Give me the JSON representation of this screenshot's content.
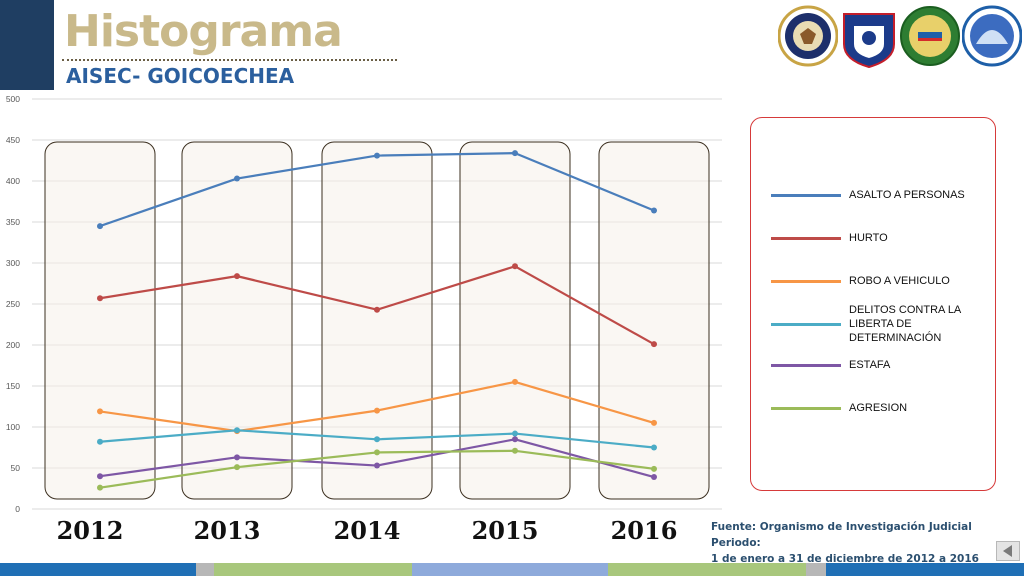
{
  "header": {
    "title": "Histograma",
    "subtitle": "AISEC- GOICOECHEA"
  },
  "logos": [
    {
      "name": "us-embassy-seal-icon",
      "text": "UNITED STATES OF AMERICA · EMBASSY"
    },
    {
      "name": "fuerza-publica-shield-icon",
      "text": "FUERZA PUBLICA"
    },
    {
      "name": "costa-rica-seal-icon",
      "text": ""
    },
    {
      "name": "aisec-logo-icon",
      "text": "AISEC"
    }
  ],
  "chart_data": {
    "type": "line",
    "categories": [
      "2012",
      "2013",
      "2014",
      "2015",
      "2016"
    ],
    "ylim": [
      0,
      500
    ],
    "yticks": [
      "0",
      "50",
      "100",
      "150",
      "200",
      "250",
      "300",
      "350",
      "400",
      "450",
      "500"
    ],
    "grid": true,
    "legend_position": "right",
    "series": [
      {
        "name": "ASALTO A PERSONAS",
        "color": "#4a7ebb",
        "values": [
          345,
          403,
          431,
          434,
          364
        ]
      },
      {
        "name": "HURTO",
        "color": "#be4b48",
        "values": [
          257,
          284,
          243,
          296,
          201
        ]
      },
      {
        "name": "ROBO A VEHICULO",
        "color": "#f79646",
        "values": [
          119,
          95,
          120,
          155,
          105
        ]
      },
      {
        "name": "DELITOS CONTRA LA LIBERTA DE DETERMINACIÓN",
        "color": "#4bacc6",
        "values": [
          82,
          96,
          85,
          92,
          75
        ]
      },
      {
        "name": "ESTAFA",
        "color": "#7e57a5",
        "values": [
          40,
          63,
          53,
          85,
          39
        ]
      },
      {
        "name": "AGRESION",
        "color": "#9bbb59",
        "values": [
          26,
          51,
          69,
          71,
          49
        ]
      }
    ]
  },
  "source": {
    "line1": "Fuente: Organismo de Investigación Judicial Periodo:",
    "line2": "1 de enero a 31 de diciembre de 2012 a 2016"
  },
  "colors": {
    "side_block": "#1f3e62",
    "title": "#c9b98a",
    "subtitle": "#2b5f9e",
    "legend_border": "#d63a3a"
  }
}
